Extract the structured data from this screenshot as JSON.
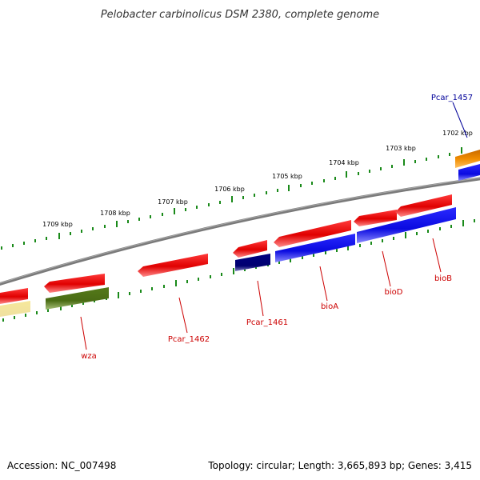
{
  "title": "Pelobacter carbinolicus DSM 2380, complete genome",
  "footer": {
    "accession": "Accession: NC_007498",
    "summary": "Topology: circular; Length: 3,665,893 bp; Genes: 3,415"
  },
  "colors": {
    "backbone": "#808080",
    "tick": "#1a7a1a",
    "label_red": "#cc0000",
    "label_blue": "#000099",
    "gene_red": "#e60000",
    "gene_blue": "#1414e6",
    "gene_navy": "#000080",
    "gene_olive": "#557a1a",
    "gene_yellow": "#f0e08c",
    "gene_orange": "#f08c00"
  },
  "scale_labels": [
    "1702 kbp",
    "1703 kbp",
    "1704 kbp",
    "1705 kbp",
    "1706 kbp",
    "1707 kbp",
    "1708 kbp",
    "1709 kbp"
  ],
  "gene_labels": {
    "pcar_1457": "Pcar_1457",
    "wza": "wza",
    "pcar_1462": "Pcar_1462",
    "pcar_1461": "Pcar_1461",
    "bioA": "bioA",
    "bioD": "bioD",
    "bioB": "bioB"
  }
}
